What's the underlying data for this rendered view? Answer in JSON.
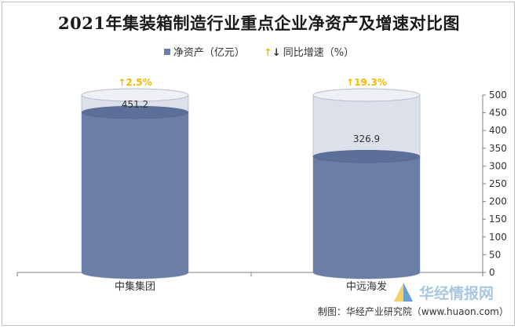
{
  "title": "2021年集装箱制造行业重点企业净资产及增速对比图",
  "legend": {
    "series1": "净资产（亿元）",
    "series2": "同比增速（%）"
  },
  "colors": {
    "bar": "#6b7fa6",
    "bar_top": "#5b6f99",
    "bar_bottom": "#56688f",
    "shell": "#d9dde9",
    "shell_stroke": "#b7bdce",
    "growth": "#f5b800",
    "axis": "#808080"
  },
  "watermark": {
    "text": "华经情报网",
    "url": "www.huaon.com"
  },
  "credit": "制图：华经产业研究院（www.huaon.com）",
  "chart_data": {
    "type": "bar",
    "categories": [
      "中集集团",
      "中远海发"
    ],
    "series": [
      {
        "name": "净资产（亿元）",
        "values": [
          451.2,
          326.9
        ]
      },
      {
        "name": "同比增速（%）",
        "values": [
          2.5,
          19.3
        ],
        "labels": [
          "↑2.5%",
          "↑19.3%"
        ]
      }
    ],
    "ylim": [
      0,
      500
    ],
    "yticks": [
      0,
      50,
      100,
      150,
      200,
      250,
      300,
      350,
      400,
      450,
      500
    ],
    "y_axis_side": "right",
    "legend_position": "top",
    "grid": false,
    "style": "cylinder"
  }
}
